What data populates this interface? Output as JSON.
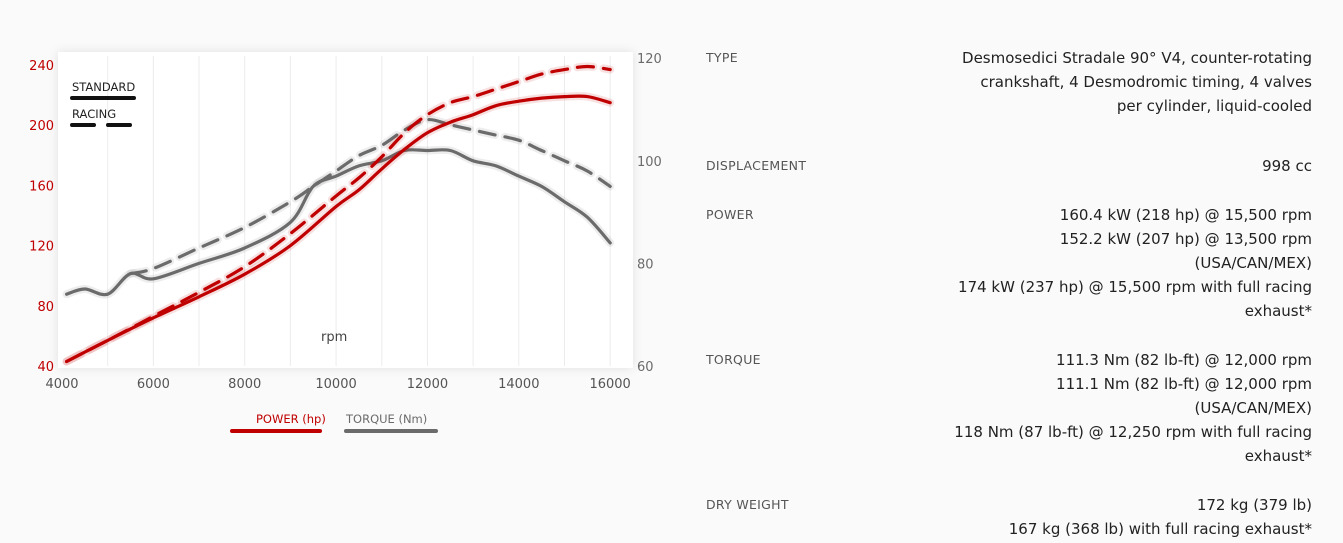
{
  "chart_data": {
    "type": "line",
    "xlabel": "rpm",
    "x_ticks": [
      "4000",
      "6000",
      "8000",
      "10000",
      "12000",
      "14000",
      "16000"
    ],
    "xlim": [
      4000,
      16500
    ],
    "left_axis": {
      "ticks": [
        "40",
        "80",
        "120",
        "160",
        "200",
        "240"
      ],
      "ylim": [
        40,
        248
      ]
    },
    "right_axis": {
      "ticks": [
        "60",
        "80",
        "100",
        "120"
      ],
      "ylim": [
        60,
        121
      ]
    },
    "line_styles": [
      {
        "label": "STANDARD",
        "dash": "solid"
      },
      {
        "label": "RACING",
        "dash": "dashed"
      }
    ],
    "legend": [
      {
        "label": "POWER (hp)",
        "color": "#c00000"
      },
      {
        "label": "TORQUE (Nm)",
        "color": "#6b6b6b"
      }
    ],
    "series": [
      {
        "name": "POWER (hp)",
        "style": "STANDARD",
        "axis": "left",
        "color": "#c00000",
        "x": [
          4100,
          5000,
          6000,
          7000,
          8000,
          9000,
          10000,
          10500,
          11000,
          11500,
          12000,
          12500,
          13000,
          13500,
          14000,
          14500,
          15000,
          15500,
          16000
        ],
        "y": [
          43,
          57,
          72,
          86,
          101,
          120,
          146,
          157,
          171,
          184,
          195,
          202,
          207,
          213,
          216,
          218,
          219,
          219,
          215
        ]
      },
      {
        "name": "POWER (hp)",
        "style": "RACING",
        "axis": "left",
        "color": "#c00000",
        "x": [
          4100,
          5000,
          6000,
          7000,
          8000,
          9000,
          10000,
          10500,
          11000,
          11500,
          12000,
          12500,
          13000,
          13500,
          14000,
          14500,
          15000,
          15500,
          16000
        ],
        "y": [
          43,
          57,
          73,
          89,
          106,
          128,
          153,
          165,
          179,
          195,
          207,
          215,
          219,
          224,
          229,
          234,
          237,
          239,
          237
        ]
      },
      {
        "name": "TORQUE (Nm)",
        "style": "STANDARD",
        "axis": "right",
        "color": "#6b6b6b",
        "x": [
          4100,
          4500,
          5000,
          5500,
          6000,
          7000,
          8000,
          9000,
          9500,
          10000,
          10500,
          11000,
          11500,
          12000,
          12500,
          13000,
          13500,
          14000,
          14500,
          15000,
          15500,
          16000
        ],
        "y": [
          74,
          75,
          74,
          78,
          77,
          80,
          83,
          88,
          95,
          97,
          99,
          100,
          102,
          102,
          102,
          100,
          99,
          97,
          95,
          92,
          89,
          84
        ]
      },
      {
        "name": "TORQUE (Nm)",
        "style": "RACING",
        "axis": "right",
        "color": "#6b6b6b",
        "x": [
          5500,
          6000,
          7000,
          8000,
          9000,
          9500,
          10000,
          10500,
          11000,
          11500,
          12000,
          12500,
          13000,
          13500,
          14000,
          14500,
          15000,
          15500,
          16000
        ],
        "y": [
          78,
          79,
          83,
          87,
          92,
          95,
          98,
          101,
          103,
          106,
          108,
          107,
          106,
          105,
          104,
          102,
          100,
          98,
          95
        ]
      }
    ]
  },
  "specs": [
    {
      "label": "TYPE",
      "values": [
        "Desmosedici Stradale 90° V4, counter-rotating",
        "crankshaft, 4 Desmodromic timing, 4 valves",
        "per cylinder, liquid-cooled"
      ]
    },
    {
      "label": "DISPLACEMENT",
      "values": [
        "998 cc"
      ]
    },
    {
      "label": "POWER",
      "values": [
        "160.4 kW (218 hp) @ 15,500 rpm",
        "152.2 kW (207 hp) @ 13,500 rpm",
        "(USA/CAN/MEX)",
        "174 kW (237 hp) @ 15,500 rpm with full racing",
        "exhaust*"
      ]
    },
    {
      "label": "TORQUE",
      "values": [
        "111.3 Nm (82 lb-ft) @ 12,000 rpm",
        "111.1 Nm (82 lb-ft) @ 12,000 rpm",
        "(USA/CAN/MEX)",
        "118 Nm (87 lb-ft) @ 12,250 rpm with full racing",
        "exhaust*"
      ]
    },
    {
      "label": "DRY WEIGHT",
      "values": [
        "172 kg (379 lb)",
        "167 kg (368 lb) with full racing exhaust*"
      ]
    }
  ]
}
